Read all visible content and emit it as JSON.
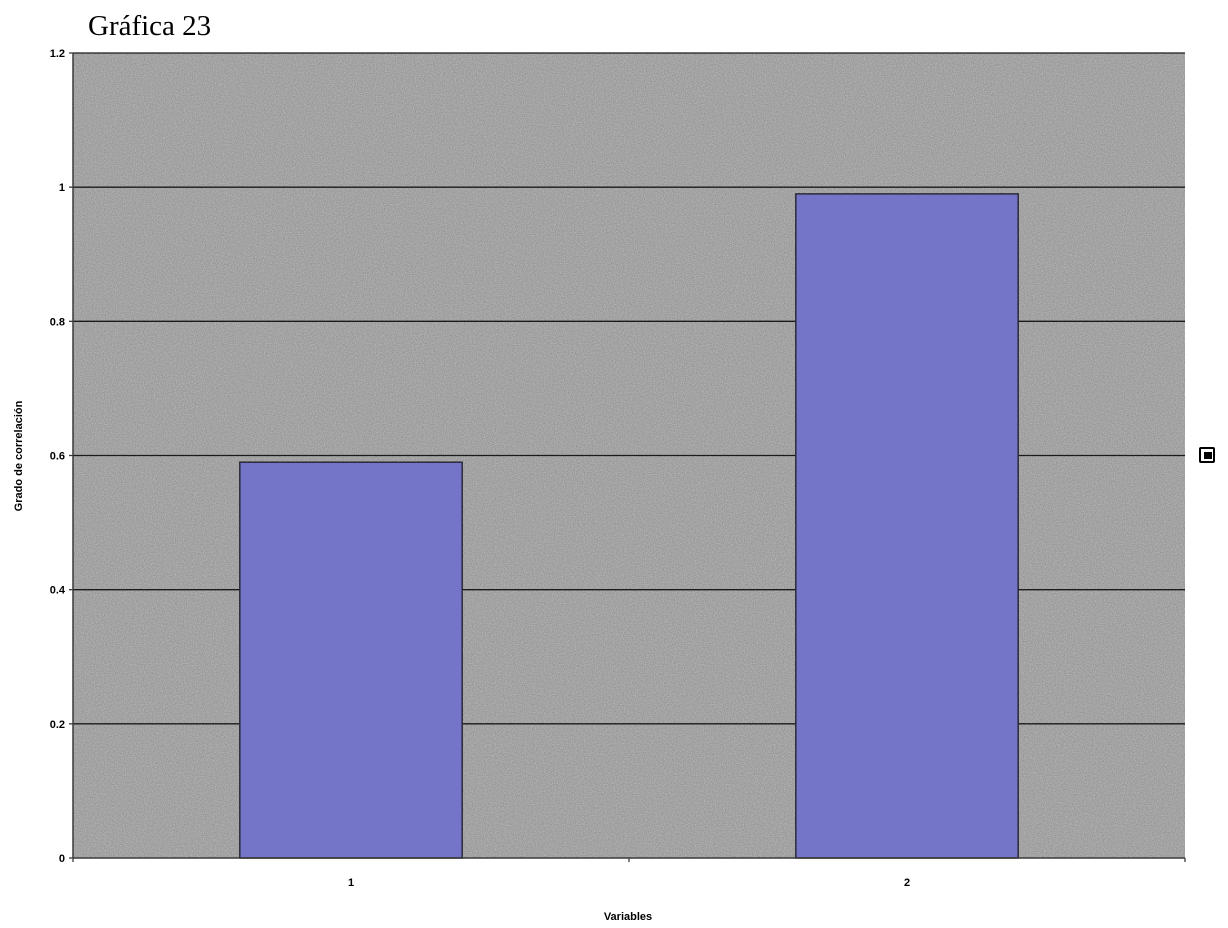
{
  "chart_data": {
    "type": "bar",
    "title": "Gráfica 23",
    "xlabel": "Variables",
    "ylabel": "Grado de correlación",
    "categories": [
      "1",
      "2"
    ],
    "series": [
      {
        "values": [
          0.59,
          0.99
        ]
      }
    ],
    "ylim": [
      0,
      1.2
    ],
    "yticks": [
      0,
      0.2,
      0.4,
      0.6,
      0.8,
      1,
      1.2
    ],
    "ytick_labels": [
      "0",
      "0.2",
      "0.4",
      "0.6",
      "0.8",
      "1",
      "1.2"
    ],
    "grid": true,
    "legend": "right",
    "colors": {
      "bar": "#7474c8",
      "bar_edge": "#2a2a3a",
      "plot_background": "#c2c2c2",
      "gridline": "#1a1a1a"
    }
  }
}
